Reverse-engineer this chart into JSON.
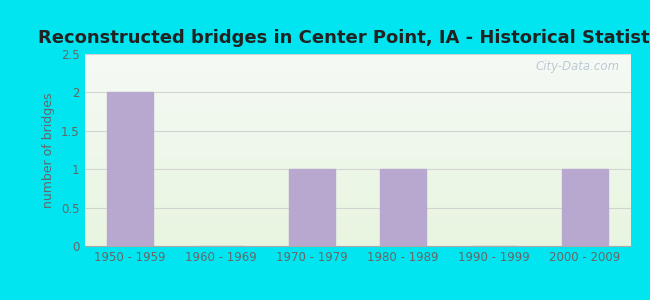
{
  "title": "Reconstructed bridges in Center Point, IA - Historical Statistics",
  "categories": [
    "1950 - 1959",
    "1960 - 1969",
    "1970 - 1979",
    "1980 - 1989",
    "1990 - 1999",
    "2000 - 2009"
  ],
  "values": [
    2,
    0,
    1,
    1,
    0,
    1
  ],
  "bar_color": "#b8a8d0",
  "ylabel": "number of bridges",
  "ylim": [
    0,
    2.5
  ],
  "yticks": [
    0,
    0.5,
    1,
    1.5,
    2,
    2.5
  ],
  "background_outer": "#00e5f0",
  "background_inner_top": "#f0f5f0",
  "background_inner_bottom": "#d8f0d0",
  "title_fontsize": 13,
  "label_fontsize": 9,
  "tick_fontsize": 8.5,
  "watermark": "City-Data.com",
  "tick_color": "#666666",
  "title_color": "#222222"
}
